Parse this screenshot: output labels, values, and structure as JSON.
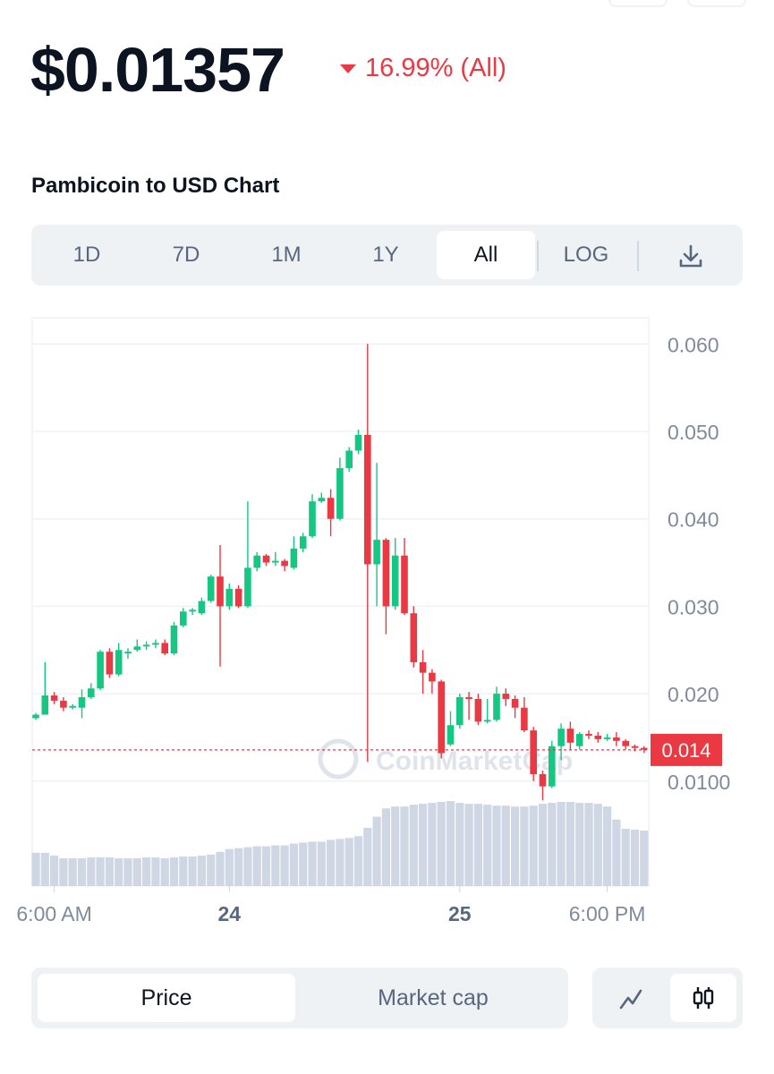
{
  "header": {
    "price": "$0.01357",
    "change": "16.99% (All)",
    "chart_title": "Pambicoin to USD Chart"
  },
  "tabs": [
    "1D",
    "7D",
    "1M",
    "1Y",
    "All",
    "LOG"
  ],
  "active_tab": "All",
  "toggle": [
    "Price",
    "Market cap"
  ],
  "active_toggle": "Price",
  "chart_data": {
    "type": "candlestick",
    "watermark": "CoinMarketCap",
    "up_color": "#16c784",
    "down_color": "#ea3943",
    "volume_color": "#cfd6e4",
    "grid": true,
    "ylim": [
      -0.002,
      0.063
    ],
    "yticks": [
      {
        "value": 0.01,
        "label": "0.0100"
      },
      {
        "value": 0.02,
        "label": "0.020"
      },
      {
        "value": 0.03,
        "label": "0.030"
      },
      {
        "value": 0.04,
        "label": "0.040"
      },
      {
        "value": 0.05,
        "label": "0.050"
      },
      {
        "value": 0.06,
        "label": "0.060"
      }
    ],
    "xticks": [
      {
        "value": 2,
        "label": "6:00 AM"
      },
      {
        "value": 21,
        "label": "24"
      },
      {
        "value": 46,
        "label": "25"
      },
      {
        "value": 62,
        "label": "6:00 PM"
      }
    ],
    "current_price": {
      "value": 0.01357,
      "label": "0.014"
    },
    "open": [
      0.0172,
      0.0176,
      0.0198,
      0.0192,
      0.0184,
      0.0184,
      0.0196,
      0.0206,
      0.0248,
      0.0222,
      0.0246,
      0.025,
      0.0254,
      0.0256,
      0.0258,
      0.0246,
      0.0278,
      0.0294,
      0.0292,
      0.0306,
      0.0334,
      0.03,
      0.032,
      0.03,
      0.0344,
      0.0358,
      0.035,
      0.0352,
      0.0344,
      0.0366,
      0.038,
      0.042,
      0.0424,
      0.04,
      0.0458,
      0.0478,
      0.0496,
      0.0348,
      0.0376,
      0.03,
      0.0358,
      0.0292,
      0.0236,
      0.0224,
      0.0214,
      0.0142,
      0.0164,
      0.0196,
      0.0194,
      0.0168,
      0.017,
      0.02,
      0.0194,
      0.0184,
      0.0158,
      0.0108,
      0.0094,
      0.014,
      0.016,
      0.014,
      0.0154,
      0.0152,
      0.0148,
      0.015,
      0.0146,
      0.014,
      0.0138
    ],
    "high": [
      0.0178,
      0.0236,
      0.0202,
      0.0196,
      0.0188,
      0.0205,
      0.0212,
      0.025,
      0.0252,
      0.0258,
      0.0252,
      0.0262,
      0.026,
      0.0262,
      0.0262,
      0.0282,
      0.0298,
      0.0298,
      0.031,
      0.0336,
      0.037,
      0.0326,
      0.0324,
      0.042,
      0.0362,
      0.036,
      0.0362,
      0.0354,
      0.038,
      0.0384,
      0.0428,
      0.043,
      0.0434,
      0.047,
      0.0482,
      0.0502,
      0.06,
      0.0464,
      0.0378,
      0.0378,
      0.0378,
      0.03,
      0.025,
      0.0228,
      0.0216,
      0.018,
      0.02,
      0.0202,
      0.02,
      0.0194,
      0.0208,
      0.0206,
      0.0198,
      0.0196,
      0.0162,
      0.0112,
      0.0146,
      0.0166,
      0.0168,
      0.0156,
      0.0158,
      0.0156,
      0.0154,
      0.0156,
      0.0148,
      0.0142,
      0.014
    ],
    "low": [
      0.017,
      0.0176,
      0.0188,
      0.018,
      0.0182,
      0.0172,
      0.0194,
      0.0204,
      0.0218,
      0.022,
      0.024,
      0.0248,
      0.025,
      0.0252,
      0.0244,
      0.0244,
      0.0276,
      0.029,
      0.029,
      0.0304,
      0.0231,
      0.0296,
      0.0298,
      0.0298,
      0.034,
      0.0346,
      0.0346,
      0.034,
      0.0342,
      0.0362,
      0.0378,
      0.0418,
      0.038,
      0.0398,
      0.0454,
      0.0474,
      0.0122,
      0.03,
      0.0268,
      0.0296,
      0.029,
      0.023,
      0.02,
      0.02,
      0.0126,
      0.014,
      0.016,
      0.017,
      0.0164,
      0.0166,
      0.0168,
      0.0186,
      0.0172,
      0.0156,
      0.01,
      0.0078,
      0.0092,
      0.0124,
      0.0136,
      0.0136,
      0.0148,
      0.0144,
      0.0146,
      0.014,
      0.0136,
      0.0134,
      0.0132
    ],
    "close": [
      0.0176,
      0.0198,
      0.0192,
      0.0184,
      0.0186,
      0.0196,
      0.0206,
      0.0248,
      0.0222,
      0.025,
      0.0248,
      0.0254,
      0.0256,
      0.0258,
      0.0246,
      0.0278,
      0.0294,
      0.0296,
      0.0306,
      0.0334,
      0.03,
      0.032,
      0.03,
      0.0344,
      0.0358,
      0.035,
      0.0352,
      0.0346,
      0.0366,
      0.038,
      0.042,
      0.0424,
      0.04,
      0.0458,
      0.0478,
      0.0496,
      0.0348,
      0.0376,
      0.03,
      0.0358,
      0.0292,
      0.0236,
      0.0224,
      0.0214,
      0.0132,
      0.0164,
      0.0196,
      0.0194,
      0.0168,
      0.017,
      0.02,
      0.0194,
      0.0184,
      0.0158,
      0.0108,
      0.0094,
      0.014,
      0.016,
      0.0144,
      0.0154,
      0.0152,
      0.0148,
      0.015,
      0.0146,
      0.014,
      0.0138,
      0.0136
    ],
    "volume": [
      36,
      36,
      33,
      30,
      30,
      30,
      31,
      31,
      31,
      30,
      30,
      30,
      31,
      31,
      30,
      31,
      32,
      32,
      33,
      34,
      37,
      40,
      41,
      42,
      43,
      43,
      44,
      44,
      46,
      47,
      48,
      48,
      50,
      51,
      52,
      54,
      63,
      75,
      84,
      86,
      86,
      88,
      89,
      90,
      91,
      92,
      90,
      89,
      89,
      88,
      87,
      87,
      86,
      86,
      87,
      89,
      90,
      91,
      91,
      90,
      90,
      89,
      86,
      72,
      62,
      61,
      60
    ]
  }
}
